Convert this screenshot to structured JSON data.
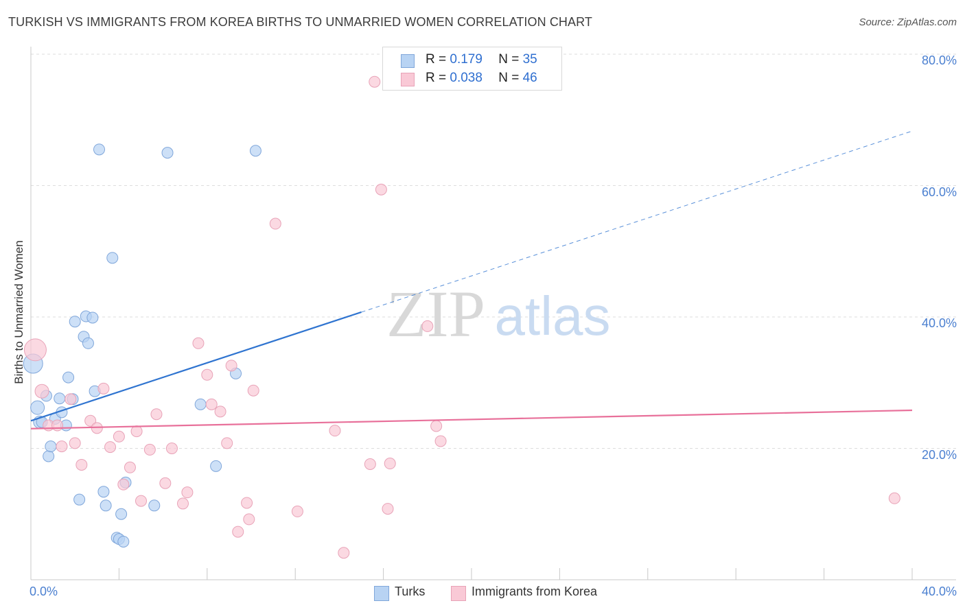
{
  "title": "TURKISH VS IMMIGRANTS FROM KOREA BIRTHS TO UNMARRIED WOMEN CORRELATION CHART",
  "source": "Source: ZipAtlas.com",
  "watermark": {
    "zip": "ZIP",
    "atlas": "atlas"
  },
  "legend": {
    "rows": [
      {
        "r_label": "R = ",
        "r_value": "0.179",
        "n_label": "N = ",
        "n_value": "35",
        "color": "#b8d3f3"
      },
      {
        "r_label": "R = ",
        "r_value": "0.038",
        "n_label": "N = ",
        "n_value": "46",
        "color": "#f9c9d6"
      }
    ]
  },
  "bottom_legend": [
    {
      "label": "Turks",
      "color": "#b8d3f3"
    },
    {
      "label": "Immigrants from Korea",
      "color": "#f9c9d6"
    }
  ],
  "chart_data": {
    "type": "scatter",
    "title": "TURKISH VS IMMIGRANTS FROM KOREA BIRTHS TO UNMARRIED WOMEN CORRELATION CHART",
    "xlabel": "",
    "ylabel": "Births to Unmarried Women",
    "xlim": [
      0,
      40
    ],
    "ylim": [
      0,
      80
    ],
    "x_tick_labels": [
      "0.0%",
      "40.0%"
    ],
    "y_tick_labels": [
      {
        "value": 20,
        "label": "20.0%"
      },
      {
        "value": 40,
        "label": "40.0%"
      },
      {
        "value": 60,
        "label": "60.0%"
      },
      {
        "value": 80,
        "label": "80.0%"
      }
    ],
    "grid": true,
    "series": [
      {
        "name": "Turks",
        "color": "#b8d3f3",
        "stroke": "#7fa6da",
        "points": [
          [
            0.1,
            32.9,
            14
          ],
          [
            0.3,
            26.2,
            10
          ],
          [
            0.4,
            24.0,
            9
          ],
          [
            0.5,
            24.0,
            8
          ],
          [
            0.7,
            28.0,
            8
          ],
          [
            0.8,
            18.8,
            8
          ],
          [
            0.9,
            20.3,
            8
          ],
          [
            1.1,
            24.5,
            8
          ],
          [
            1.3,
            27.6,
            8
          ],
          [
            1.4,
            25.5,
            8
          ],
          [
            1.6,
            23.5,
            8
          ],
          [
            1.7,
            30.8,
            8
          ],
          [
            1.9,
            27.5,
            8
          ],
          [
            2.0,
            39.3,
            8
          ],
          [
            2.2,
            12.2,
            8
          ],
          [
            2.4,
            37.0,
            8
          ],
          [
            2.5,
            40.1,
            8
          ],
          [
            2.6,
            36.0,
            8
          ],
          [
            2.8,
            39.9,
            8
          ],
          [
            2.9,
            28.7,
            8
          ],
          [
            3.1,
            65.5,
            8
          ],
          [
            3.3,
            13.4,
            8
          ],
          [
            3.4,
            11.3,
            8
          ],
          [
            3.7,
            49.0,
            8
          ],
          [
            3.9,
            6.4,
            8
          ],
          [
            4.0,
            6.2,
            8
          ],
          [
            4.1,
            10.0,
            8
          ],
          [
            4.2,
            5.8,
            8
          ],
          [
            4.3,
            14.8,
            8
          ],
          [
            5.6,
            11.3,
            8
          ],
          [
            6.2,
            65.0,
            8
          ],
          [
            7.7,
            26.7,
            8
          ],
          [
            8.4,
            17.3,
            8
          ],
          [
            9.3,
            31.4,
            8
          ],
          [
            10.2,
            65.3,
            8
          ]
        ]
      },
      {
        "name": "Immigrants from Korea",
        "color": "#f9c9d6",
        "stroke": "#e8a2b7",
        "points": [
          [
            0.2,
            35.0,
            16
          ],
          [
            0.5,
            28.7,
            10
          ],
          [
            0.8,
            23.5,
            8
          ],
          [
            1.2,
            23.5,
            8
          ],
          [
            1.4,
            20.3,
            8
          ],
          [
            2.0,
            20.8,
            8
          ],
          [
            1.8,
            27.5,
            8
          ],
          [
            2.3,
            17.5,
            8
          ],
          [
            2.7,
            24.2,
            8
          ],
          [
            3.0,
            23.1,
            8
          ],
          [
            3.3,
            29.1,
            8
          ],
          [
            3.6,
            20.2,
            8
          ],
          [
            4.0,
            21.8,
            8
          ],
          [
            4.2,
            14.5,
            8
          ],
          [
            4.5,
            17.1,
            8
          ],
          [
            4.8,
            22.6,
            8
          ],
          [
            5.0,
            12.0,
            8
          ],
          [
            5.4,
            19.8,
            8
          ],
          [
            5.7,
            25.2,
            8
          ],
          [
            6.1,
            14.7,
            8
          ],
          [
            6.4,
            20.0,
            8
          ],
          [
            6.9,
            11.6,
            8
          ],
          [
            7.1,
            13.3,
            8
          ],
          [
            7.6,
            36.0,
            8
          ],
          [
            8.0,
            31.2,
            8
          ],
          [
            8.2,
            26.7,
            8
          ],
          [
            8.6,
            25.6,
            8
          ],
          [
            8.9,
            20.8,
            8
          ],
          [
            9.1,
            32.6,
            8
          ],
          [
            9.4,
            7.3,
            8
          ],
          [
            9.8,
            11.7,
            8
          ],
          [
            9.9,
            9.2,
            8
          ],
          [
            10.1,
            28.8,
            8
          ],
          [
            11.1,
            54.2,
            8
          ],
          [
            12.1,
            10.4,
            8
          ],
          [
            13.8,
            22.7,
            8
          ],
          [
            14.2,
            4.1,
            8
          ],
          [
            15.4,
            17.6,
            8
          ],
          [
            15.6,
            75.8,
            8
          ],
          [
            15.9,
            59.4,
            8
          ],
          [
            16.2,
            10.8,
            8
          ],
          [
            16.3,
            17.7,
            8
          ],
          [
            18.0,
            38.6,
            8
          ],
          [
            18.4,
            23.4,
            8
          ],
          [
            18.6,
            21.1,
            8
          ],
          [
            39.2,
            12.4,
            8
          ]
        ]
      }
    ],
    "trend_lines": [
      {
        "name": "Turks",
        "color": "#2f74d0",
        "x_start": 0,
        "y_start": 24.2,
        "x_solid_end": 15.0,
        "x_end": 40,
        "y_end": 68.3
      },
      {
        "name": "Immigrants from Korea",
        "color": "#e8709a",
        "x_start": 0,
        "y_start": 23.0,
        "x_end": 40,
        "y_end": 25.8
      }
    ]
  }
}
